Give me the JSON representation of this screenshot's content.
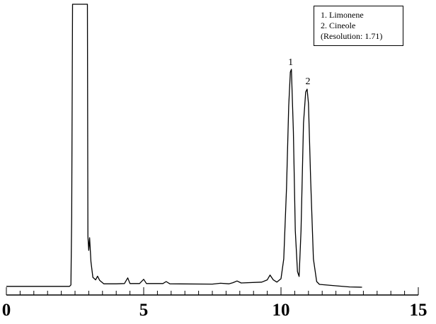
{
  "chart_data": {
    "type": "line",
    "title": "",
    "xlabel": "",
    "ylabel": "",
    "xlim": [
      0,
      15
    ],
    "ylim": [
      0,
      100
    ],
    "x_ticks": [
      "0",
      "5",
      "10",
      "15"
    ],
    "grid": false,
    "legend": {
      "placement": "top-right",
      "lines": [
        "1. Limonene",
        "2. Cineole",
        "(Resolution: 1.71)"
      ]
    },
    "peak_labels": [
      {
        "text": "1",
        "x": 10.35,
        "y": 78.5
      },
      {
        "text": "2",
        "x": 10.98,
        "y": 71.7
      }
    ],
    "series": [
      {
        "values": [
          [
            0.0,
            0.3
          ],
          [
            1.6,
            0.3
          ],
          [
            2.3,
            0.3
          ],
          [
            2.35,
            0.8
          ],
          [
            2.38,
            25.0
          ],
          [
            2.41,
            100.0
          ],
          [
            2.6,
            100.0
          ],
          [
            2.95,
            100.0
          ],
          [
            2.97,
            18.0
          ],
          [
            3.0,
            13.0
          ],
          [
            3.03,
            17.5
          ],
          [
            3.08,
            9.0
          ],
          [
            3.15,
            3.5
          ],
          [
            3.25,
            2.6
          ],
          [
            3.32,
            3.9
          ],
          [
            3.4,
            2.4
          ],
          [
            3.55,
            1.2
          ],
          [
            4.0,
            1.2
          ],
          [
            4.3,
            1.3
          ],
          [
            4.42,
            3.3
          ],
          [
            4.5,
            1.3
          ],
          [
            4.85,
            1.3
          ],
          [
            5.0,
            2.8
          ],
          [
            5.1,
            1.3
          ],
          [
            5.7,
            1.3
          ],
          [
            5.82,
            2.0
          ],
          [
            5.95,
            1.2
          ],
          [
            7.5,
            1.1
          ],
          [
            7.8,
            1.4
          ],
          [
            8.1,
            1.2
          ],
          [
            8.25,
            1.6
          ],
          [
            8.4,
            2.2
          ],
          [
            8.55,
            1.5
          ],
          [
            9.3,
            1.8
          ],
          [
            9.5,
            2.6
          ],
          [
            9.6,
            4.3
          ],
          [
            9.72,
            2.6
          ],
          [
            9.85,
            1.8
          ],
          [
            10.0,
            3.0
          ],
          [
            10.1,
            10.0
          ],
          [
            10.2,
            35.0
          ],
          [
            10.28,
            64.0
          ],
          [
            10.34,
            76.0
          ],
          [
            10.38,
            77.0
          ],
          [
            10.45,
            55.0
          ],
          [
            10.52,
            20.0
          ],
          [
            10.6,
            5.5
          ],
          [
            10.66,
            3.8
          ],
          [
            10.73,
            20.0
          ],
          [
            10.82,
            58.0
          ],
          [
            10.9,
            69.0
          ],
          [
            10.95,
            70.0
          ],
          [
            11.0,
            65.0
          ],
          [
            11.08,
            38.0
          ],
          [
            11.18,
            10.0
          ],
          [
            11.3,
            2.0
          ],
          [
            11.4,
            1.0
          ],
          [
            12.0,
            0.5
          ],
          [
            12.5,
            0.1
          ],
          [
            12.95,
            0.0
          ]
        ]
      }
    ],
    "colors": {
      "line": "#000000",
      "axis": "#000000",
      "background": "#ffffff"
    }
  }
}
